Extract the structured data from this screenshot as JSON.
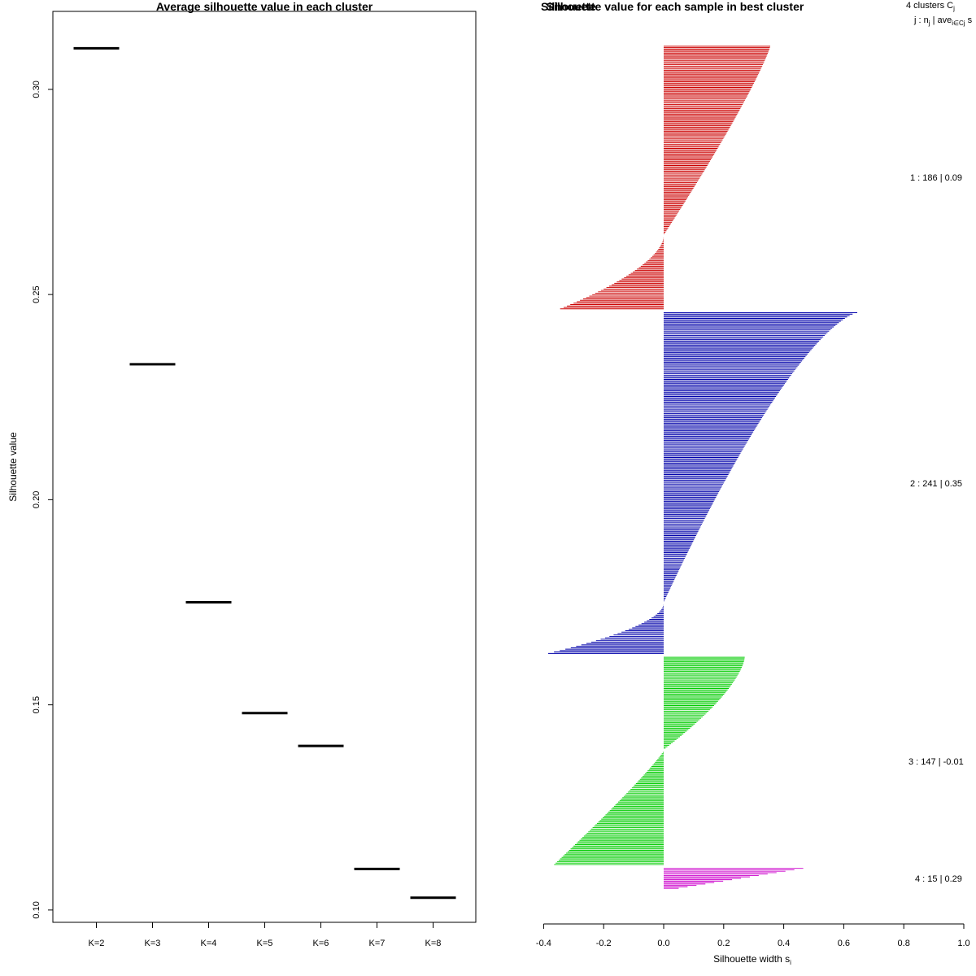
{
  "chart_data": [
    {
      "type": "scatter",
      "title": "Average silhouette value in each cluster",
      "xlabel": "",
      "ylabel": "Silhouette value",
      "categories": [
        "K=2",
        "K=3",
        "K=4",
        "K=5",
        "K=6",
        "K=7",
        "K=8"
      ],
      "values": [
        0.31,
        0.233,
        0.175,
        0.148,
        0.14,
        0.11,
        0.103
      ],
      "ylim": [
        0.097,
        0.319
      ],
      "yticks": [
        "0.10",
        "0.15",
        "0.20",
        "0.25",
        "0.30"
      ],
      "ytick_values": [
        0.1,
        0.15,
        0.2,
        0.25,
        0.3
      ],
      "grid": false
    },
    {
      "type": "bar",
      "orientation": "horizontal",
      "title": "Silhouette value for each sample in best cluster",
      "overlay_title": "Silhouette",
      "xlabel": "Silhouette width",
      "xlabel_sub": "i",
      "xlabel_symbol": "s",
      "xlim": [
        -0.4,
        1.0
      ],
      "xticks": [
        "-0.4",
        "-0.2",
        "0.0",
        "0.2",
        "0.4",
        "0.6",
        "0.8",
        "1.0"
      ],
      "xtick_values": [
        -0.4,
        -0.2,
        0.0,
        0.2,
        0.4,
        0.6,
        0.8,
        1.0
      ],
      "legend_header_1": "4  clusters  C",
      "legend_header_1_sub": "j",
      "legend_header_2": "j :  n",
      "legend_header_2_sub": "j",
      "legend_header_2_mid": " | ave",
      "legend_header_2_sub2": "i∈Cj",
      "legend_header_2_end": "  s",
      "clusters": [
        {
          "id": 1,
          "n": 186,
          "ave": "0.09",
          "label": "1 :  186  |  0.09",
          "color": "#cc0000",
          "max": 0.355,
          "min": -0.345,
          "pos_frac": 0.72,
          "pos_shape": 1.15,
          "neg_shape": 1.7
        },
        {
          "id": 2,
          "n": 241,
          "ave": "0.35",
          "label": "2 :  241  |  0.35",
          "color": "#0000aa",
          "max": 0.645,
          "min": -0.385,
          "pos_frac": 0.85,
          "pos_shape": 0.7,
          "neg_shape": 1.8
        },
        {
          "id": 3,
          "n": 147,
          "ave": "-0.01",
          "label": "3 :  147  |  -0.01",
          "color": "#00cc00",
          "max": 0.27,
          "min": -0.365,
          "pos_frac": 0.45,
          "pos_shape": 1.5,
          "neg_shape": 1.1
        },
        {
          "id": 4,
          "n": 15,
          "ave": "0.29",
          "label": "4 :  15  |  0.29",
          "color": "#cc00cc",
          "max": 0.465,
          "min": 0.05,
          "pos_frac": 1.0,
          "pos_shape": 1.0,
          "neg_shape": 1.0
        }
      ]
    }
  ]
}
